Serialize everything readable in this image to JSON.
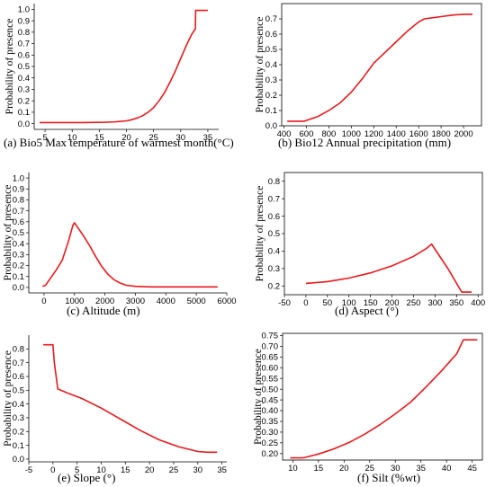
{
  "colors": {
    "series": "#e8191c"
  },
  "chart_data": [
    {
      "type": "line",
      "caption": "(a) Bio5 Max temperature of warmest month(°C)",
      "ylabel": "Probability of presence",
      "xlim": [
        3,
        37
      ],
      "ylim": [
        -0.05,
        1.05
      ],
      "xticks": [
        5,
        10,
        15,
        20,
        25,
        30,
        35
      ],
      "yticks": [
        0.0,
        0.1,
        0.2,
        0.3,
        0.4,
        0.5,
        0.6,
        0.7,
        0.8,
        0.9,
        1.0
      ],
      "y_decimals": 1,
      "x": [
        4,
        12,
        16,
        18,
        20,
        21,
        22,
        23,
        24,
        25,
        26,
        27,
        28,
        29,
        30,
        31,
        31.5,
        32,
        32.7,
        32.75,
        35
      ],
      "y": [
        0.01,
        0.01,
        0.012,
        0.016,
        0.025,
        0.035,
        0.05,
        0.07,
        0.1,
        0.14,
        0.2,
        0.27,
        0.36,
        0.46,
        0.57,
        0.68,
        0.73,
        0.78,
        0.83,
        0.99,
        0.99
      ]
    },
    {
      "type": "line",
      "caption": "(b) Bio12 Annual precipitation (mm)",
      "ylabel": "Probability of presence",
      "xlim": [
        380,
        2160
      ],
      "ylim": [
        0,
        0.8
      ],
      "xticks": [
        400,
        600,
        800,
        1000,
        1200,
        1400,
        1600,
        1800,
        2000
      ],
      "yticks": [
        0.0,
        0.1,
        0.2,
        0.3,
        0.4,
        0.5,
        0.6,
        0.7
      ],
      "y_decimals": 1,
      "x": [
        430,
        580,
        700,
        800,
        900,
        1000,
        1100,
        1200,
        1300,
        1400,
        1500,
        1600,
        1650,
        1700,
        1800,
        1900,
        2000,
        2080
      ],
      "y": [
        0.03,
        0.03,
        0.06,
        0.1,
        0.15,
        0.22,
        0.31,
        0.41,
        0.48,
        0.55,
        0.62,
        0.68,
        0.7,
        0.705,
        0.715,
        0.725,
        0.73,
        0.73
      ]
    },
    {
      "type": "line",
      "caption": "(c)  Altitude (m)",
      "ylabel": "Probability of presence",
      "xlim": [
        -500,
        6000
      ],
      "ylim": [
        -0.05,
        1.05
      ],
      "xticks": [
        0,
        1000,
        2000,
        3000,
        4000,
        5000,
        6000
      ],
      "yticks": [
        0.0,
        0.1,
        0.2,
        0.3,
        0.4,
        0.5,
        0.6,
        0.7,
        0.8,
        0.9,
        1.0
      ],
      "y_decimals": 1,
      "x": [
        -50,
        50,
        200,
        400,
        600,
        800,
        950,
        1000,
        1100,
        1300,
        1500,
        1700,
        1900,
        2100,
        2300,
        2500,
        2700,
        3000,
        3500,
        4500,
        5700
      ],
      "y": [
        0.01,
        0.02,
        0.08,
        0.16,
        0.25,
        0.42,
        0.57,
        0.59,
        0.55,
        0.47,
        0.38,
        0.28,
        0.19,
        0.12,
        0.07,
        0.04,
        0.02,
        0.01,
        0.005,
        0.005,
        0.005
      ]
    },
    {
      "type": "line",
      "caption": "(d)  Aspect (°)",
      "ylabel": "Probability of presence",
      "xlim": [
        -50,
        410
      ],
      "ylim": [
        0.15,
        0.85
      ],
      "xticks": [
        -50,
        0,
        50,
        100,
        150,
        200,
        250,
        300,
        350,
        400
      ],
      "yticks": [
        0.2,
        0.3,
        0.4,
        0.5,
        0.6,
        0.7,
        0.8
      ],
      "y_decimals": 1,
      "x": [
        0,
        50,
        100,
        150,
        200,
        250,
        280,
        292,
        300,
        330,
        362,
        385
      ],
      "y": [
        0.215,
        0.225,
        0.245,
        0.275,
        0.315,
        0.37,
        0.415,
        0.44,
        0.41,
        0.3,
        0.165,
        0.165
      ]
    },
    {
      "type": "line",
      "caption": "(e)  Slope  (°)",
      "ylabel": "Probability of presence",
      "xlim": [
        -5,
        36
      ],
      "ylim": [
        -0.02,
        0.9
      ],
      "xticks": [
        -5,
        0,
        5,
        10,
        15,
        20,
        25,
        30,
        35
      ],
      "yticks": [
        0.0,
        0.1,
        0.2,
        0.3,
        0.4,
        0.5,
        0.6,
        0.7,
        0.8
      ],
      "y_decimals": 1,
      "x": [
        -2,
        0,
        0.3,
        1,
        3,
        6,
        10,
        14,
        18,
        22,
        26,
        30,
        32,
        34
      ],
      "y": [
        0.83,
        0.83,
        0.7,
        0.51,
        0.48,
        0.44,
        0.37,
        0.29,
        0.21,
        0.14,
        0.09,
        0.055,
        0.05,
        0.05
      ]
    },
    {
      "type": "line",
      "caption": "(f)  Silt (%wt)",
      "ylabel": "Probability of presence",
      "xlim": [
        8,
        47
      ],
      "ylim": [
        0.17,
        0.76
      ],
      "xticks": [
        10,
        15,
        20,
        25,
        30,
        35,
        40,
        45
      ],
      "yticks": [
        0.2,
        0.25,
        0.3,
        0.35,
        0.4,
        0.45,
        0.5,
        0.55,
        0.6,
        0.65,
        0.7,
        0.75
      ],
      "y_decimals": 2,
      "x": [
        9.5,
        12,
        15,
        18,
        21,
        24,
        27,
        30,
        33,
        36,
        39,
        42,
        43.3,
        46
      ],
      "y": [
        0.18,
        0.18,
        0.198,
        0.222,
        0.252,
        0.29,
        0.335,
        0.385,
        0.44,
        0.51,
        0.585,
        0.665,
        0.73,
        0.73
      ]
    }
  ]
}
